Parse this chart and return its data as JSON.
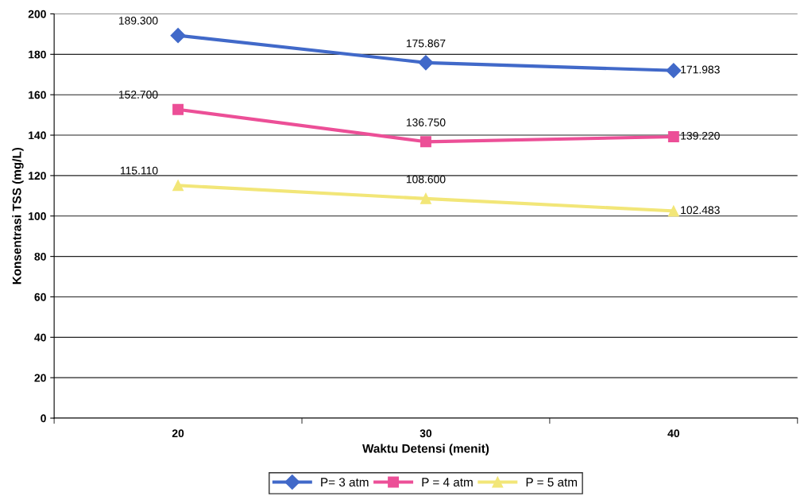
{
  "chart_data": {
    "type": "line",
    "xlabel": "Waktu Detensi (menit)",
    "ylabel": "Konsentrasi TSS (mg/L)",
    "categories": [
      "20",
      "30",
      "40"
    ],
    "series": [
      {
        "name": "P= 3 atm",
        "color": "#4169c9",
        "marker": "diamond",
        "values": [
          189.3,
          175.867,
          171.983
        ],
        "value_labels": [
          "189.300",
          "175.867",
          "171.983"
        ]
      },
      {
        "name": "P = 4 atm",
        "color": "#ec4f97",
        "marker": "square",
        "values": [
          152.7,
          136.75,
          139.22
        ],
        "value_labels": [
          "152.700",
          "136.750",
          "139.220"
        ]
      },
      {
        "name": "P = 5 atm",
        "color": "#f2e678",
        "marker": "triangle",
        "values": [
          115.11,
          108.6,
          102.483
        ],
        "value_labels": [
          "115.110",
          "108.600",
          "102.483"
        ]
      }
    ],
    "ylim": [
      0,
      200
    ],
    "yticks": [
      0,
      20,
      40,
      60,
      80,
      100,
      120,
      140,
      160,
      180,
      200
    ],
    "grid": "y",
    "legend": "bottom"
  }
}
